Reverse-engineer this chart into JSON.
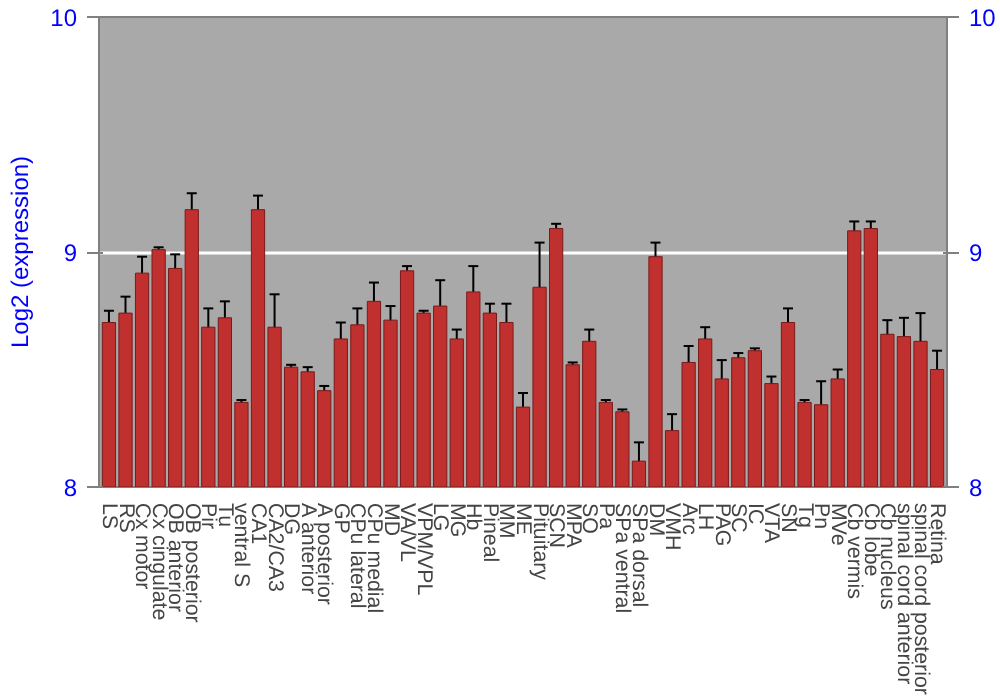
{
  "chart_data": {
    "type": "bar",
    "ylabel": "Log2 (expression)",
    "categories": [
      "LS",
      "RS",
      "Cx motor",
      "Cx cingulate",
      "OB anterior",
      "OB posterior",
      "Pir",
      "Tu",
      "ventral S",
      "CA1",
      "CA2/CA3",
      "DG",
      "A anterior",
      "A posterior",
      "GP",
      "CPu lateral",
      "CPu medial",
      "MD",
      "VA/VL",
      "VPM/VPL",
      "LG",
      "MG",
      "Hb",
      "Pineal",
      "MM",
      "ME",
      "Pituitary",
      "SCN",
      "MPA",
      "SO",
      "Pa",
      "SPa ventral",
      "SPa dorsal",
      "DM",
      "VMH",
      "Arc",
      "LH",
      "PAG",
      "SC",
      "IC",
      "VTA",
      "SN",
      "Tg",
      "Pn",
      "MVe",
      "Cb vermis",
      "Cb lobe",
      "Cb nucleus",
      "spinal cord anterior",
      "spinal cord posterior",
      "Retina"
    ],
    "values": [
      8.7,
      8.74,
      8.91,
      9.01,
      8.93,
      9.18,
      8.68,
      8.72,
      8.36,
      9.18,
      8.68,
      8.51,
      8.49,
      8.41,
      8.63,
      8.69,
      8.79,
      8.71,
      8.92,
      8.74,
      8.77,
      8.63,
      8.83,
      8.74,
      8.7,
      8.34,
      8.85,
      9.1,
      8.52,
      8.62,
      8.36,
      8.32,
      8.11,
      8.98,
      8.24,
      8.53,
      8.63,
      8.46,
      8.55,
      8.58,
      8.44,
      8.7,
      8.36,
      8.35,
      8.46,
      9.09,
      9.1,
      8.65,
      8.64,
      8.62,
      8.5
    ],
    "errors": [
      0.05,
      0.07,
      0.07,
      0.01,
      0.06,
      0.07,
      0.08,
      0.07,
      0.01,
      0.06,
      0.14,
      0.01,
      0.02,
      0.02,
      0.07,
      0.07,
      0.08,
      0.06,
      0.02,
      0.01,
      0.11,
      0.04,
      0.11,
      0.04,
      0.08,
      0.06,
      0.19,
      0.02,
      0.01,
      0.05,
      0.01,
      0.01,
      0.08,
      0.06,
      0.07,
      0.07,
      0.05,
      0.08,
      0.02,
      0.01,
      0.03,
      0.06,
      0.01,
      0.1,
      0.04,
      0.04,
      0.03,
      0.06,
      0.08,
      0.12,
      0.08
    ],
    "color": "#c0302e",
    "ylim": [
      8,
      10
    ],
    "yticks": [
      8,
      9,
      10
    ],
    "y2lim": [
      8,
      10
    ],
    "y2ticks": [
      8,
      9,
      10
    ],
    "grid": "y"
  }
}
